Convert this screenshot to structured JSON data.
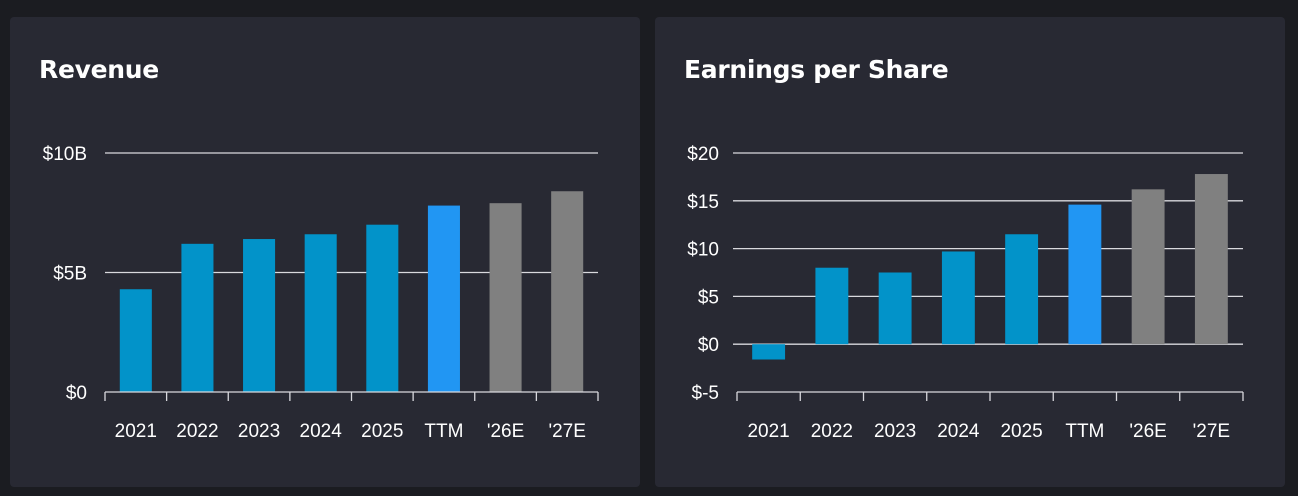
{
  "chart_data": [
    {
      "id": "revenue",
      "type": "bar",
      "title": "Revenue",
      "xlabel": "",
      "ylabel": "",
      "categories": [
        "2021",
        "2022",
        "2023",
        "2024",
        "2025",
        "TTM",
        "'26E",
        "'27E"
      ],
      "values": [
        4.3,
        6.2,
        6.4,
        6.6,
        7.0,
        7.8,
        7.9,
        8.4
      ],
      "unit": "$B",
      "ylim": [
        0,
        10
      ],
      "yticks": [
        0,
        5,
        10
      ],
      "ytick_labels": [
        "$0",
        "$5B",
        "$10B"
      ],
      "grid": true,
      "bar_colors": [
        "#0293c9",
        "#0293c9",
        "#0293c9",
        "#0293c9",
        "#0293c9",
        "#2196f3",
        "#808080",
        "#808080"
      ]
    },
    {
      "id": "eps",
      "type": "bar",
      "title": "Earnings per Share",
      "xlabel": "",
      "ylabel": "",
      "categories": [
        "2021",
        "2022",
        "2023",
        "2024",
        "2025",
        "TTM",
        "'26E",
        "'27E"
      ],
      "values": [
        -1.6,
        8.0,
        7.5,
        9.7,
        11.5,
        14.6,
        16.2,
        17.8
      ],
      "unit": "$",
      "ylim": [
        -5,
        20
      ],
      "yticks": [
        -5,
        0,
        5,
        10,
        15,
        20
      ],
      "ytick_labels": [
        "$-5",
        "$0",
        "$5",
        "$10",
        "$15",
        "$20"
      ],
      "grid": true,
      "bar_colors": [
        "#0293c9",
        "#0293c9",
        "#0293c9",
        "#0293c9",
        "#0293c9",
        "#2196f3",
        "#808080",
        "#808080"
      ]
    }
  ]
}
